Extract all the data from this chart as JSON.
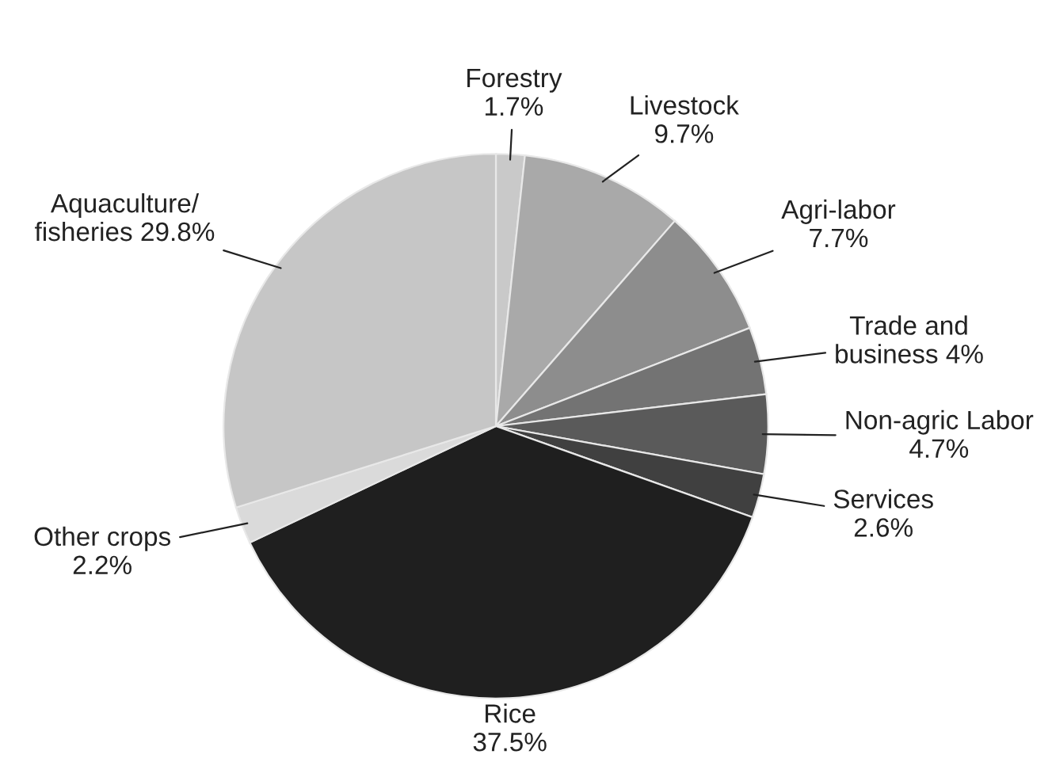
{
  "chart_data": {
    "type": "pie",
    "categories": [
      "Forestry",
      "Livestock",
      "Agri-labor",
      "Trade and\nbusiness",
      "Non-agric Labor",
      "Services",
      "Rice",
      "Other crops",
      "Aquaculture/\nfisheries"
    ],
    "values": [
      1.7,
      9.7,
      7.7,
      4,
      4.7,
      2.6,
      37.5,
      2.2,
      29.8
    ],
    "colors": [
      "#c9c9c9",
      "#a9a9a9",
      "#8d8d8d",
      "#737373",
      "#5a5a5a",
      "#404040",
      "#1f1f1f",
      "#dadada",
      "#c6c6c6"
    ],
    "value_labels": [
      "1.7%",
      "9.7%",
      "7.7%",
      "4%",
      "4.7%",
      "2.6%",
      "37.5%",
      "2.2%",
      "29.8%"
    ],
    "legend": false
  }
}
